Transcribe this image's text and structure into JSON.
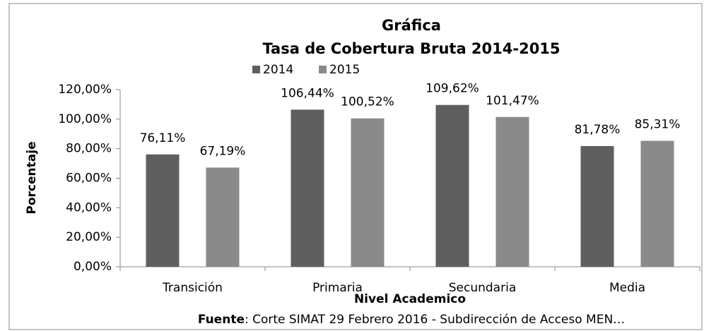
{
  "chart_data": {
    "type": "bar",
    "title": "Gráfica",
    "subtitle": "Tasa de Cobertura Bruta 2014-2015",
    "ylabel": "Porcentaje",
    "xlabel": "Nivel Academico",
    "source_label": "Fuente",
    "source_text": ": Corte SIMAT 29 Febrero 2016 - Subdirección de Acceso MEN…",
    "categories": [
      "Transición",
      "Primaria",
      "Secundaria",
      "Media"
    ],
    "series": [
      {
        "name": "2014",
        "color": "#5f5f5f",
        "values": [
          76.11,
          106.44,
          109.62,
          81.78
        ],
        "value_labels": [
          "76,11%",
          "106,44%",
          "109,62%",
          "81,78%"
        ]
      },
      {
        "name": "2015",
        "color": "#8a8a8a",
        "values": [
          67.19,
          100.52,
          101.47,
          85.31
        ],
        "value_labels": [
          "67,19%",
          "100,52%",
          "101,47%",
          "85,31%"
        ]
      }
    ],
    "ylim": [
      0,
      120
    ],
    "yticks": [
      {
        "value": 0,
        "label": "0,00%"
      },
      {
        "value": 20,
        "label": "20,00%"
      },
      {
        "value": 40,
        "label": "40,00%"
      },
      {
        "value": 60,
        "label": "60,00%"
      },
      {
        "value": 80,
        "label": "80,00%"
      },
      {
        "value": 100,
        "label": "100,00%"
      },
      {
        "value": 120,
        "label": "120,00%"
      }
    ],
    "legend": "top"
  }
}
